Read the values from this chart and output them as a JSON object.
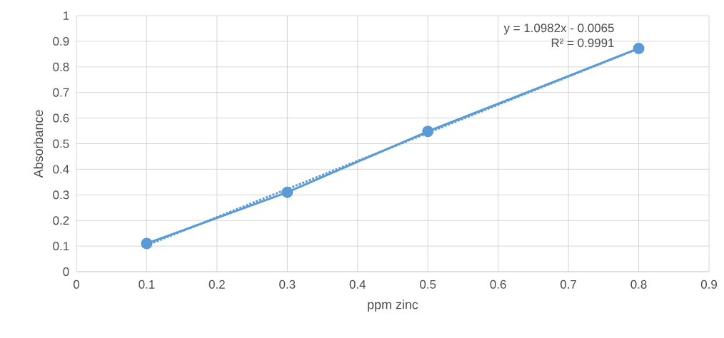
{
  "chart_data": {
    "type": "line",
    "xlabel": "ppm zinc",
    "ylabel": "Absorbance",
    "xlim": [
      0,
      0.9
    ],
    "xticks": [
      0,
      0.1,
      0.2,
      0.3,
      0.4,
      0.5,
      0.6,
      0.7,
      0.8,
      0.9
    ],
    "ylim": [
      0,
      1
    ],
    "yticks": [
      0,
      0.1,
      0.2,
      0.3,
      0.4,
      0.5,
      0.6,
      0.7,
      0.8,
      0.9,
      1
    ],
    "grid": true,
    "marker": "circle",
    "line_style": "solid",
    "series": [
      {
        "color": "#5b9bd5",
        "x": [
          0.1,
          0.3,
          0.5,
          0.8
        ],
        "values": [
          0.11,
          0.31,
          0.548,
          0.872
        ]
      },
      {
        "type": "line",
        "color": "#5b9bd5",
        "x": [
          0.1,
          0.8
        ],
        "values": [
          0.103,
          0.872
        ],
        "marker": "none",
        "line_style": "dotted"
      }
    ],
    "annotations": [
      "y = 1.0982x - 0.0065",
      "R² = 0.9991"
    ]
  }
}
